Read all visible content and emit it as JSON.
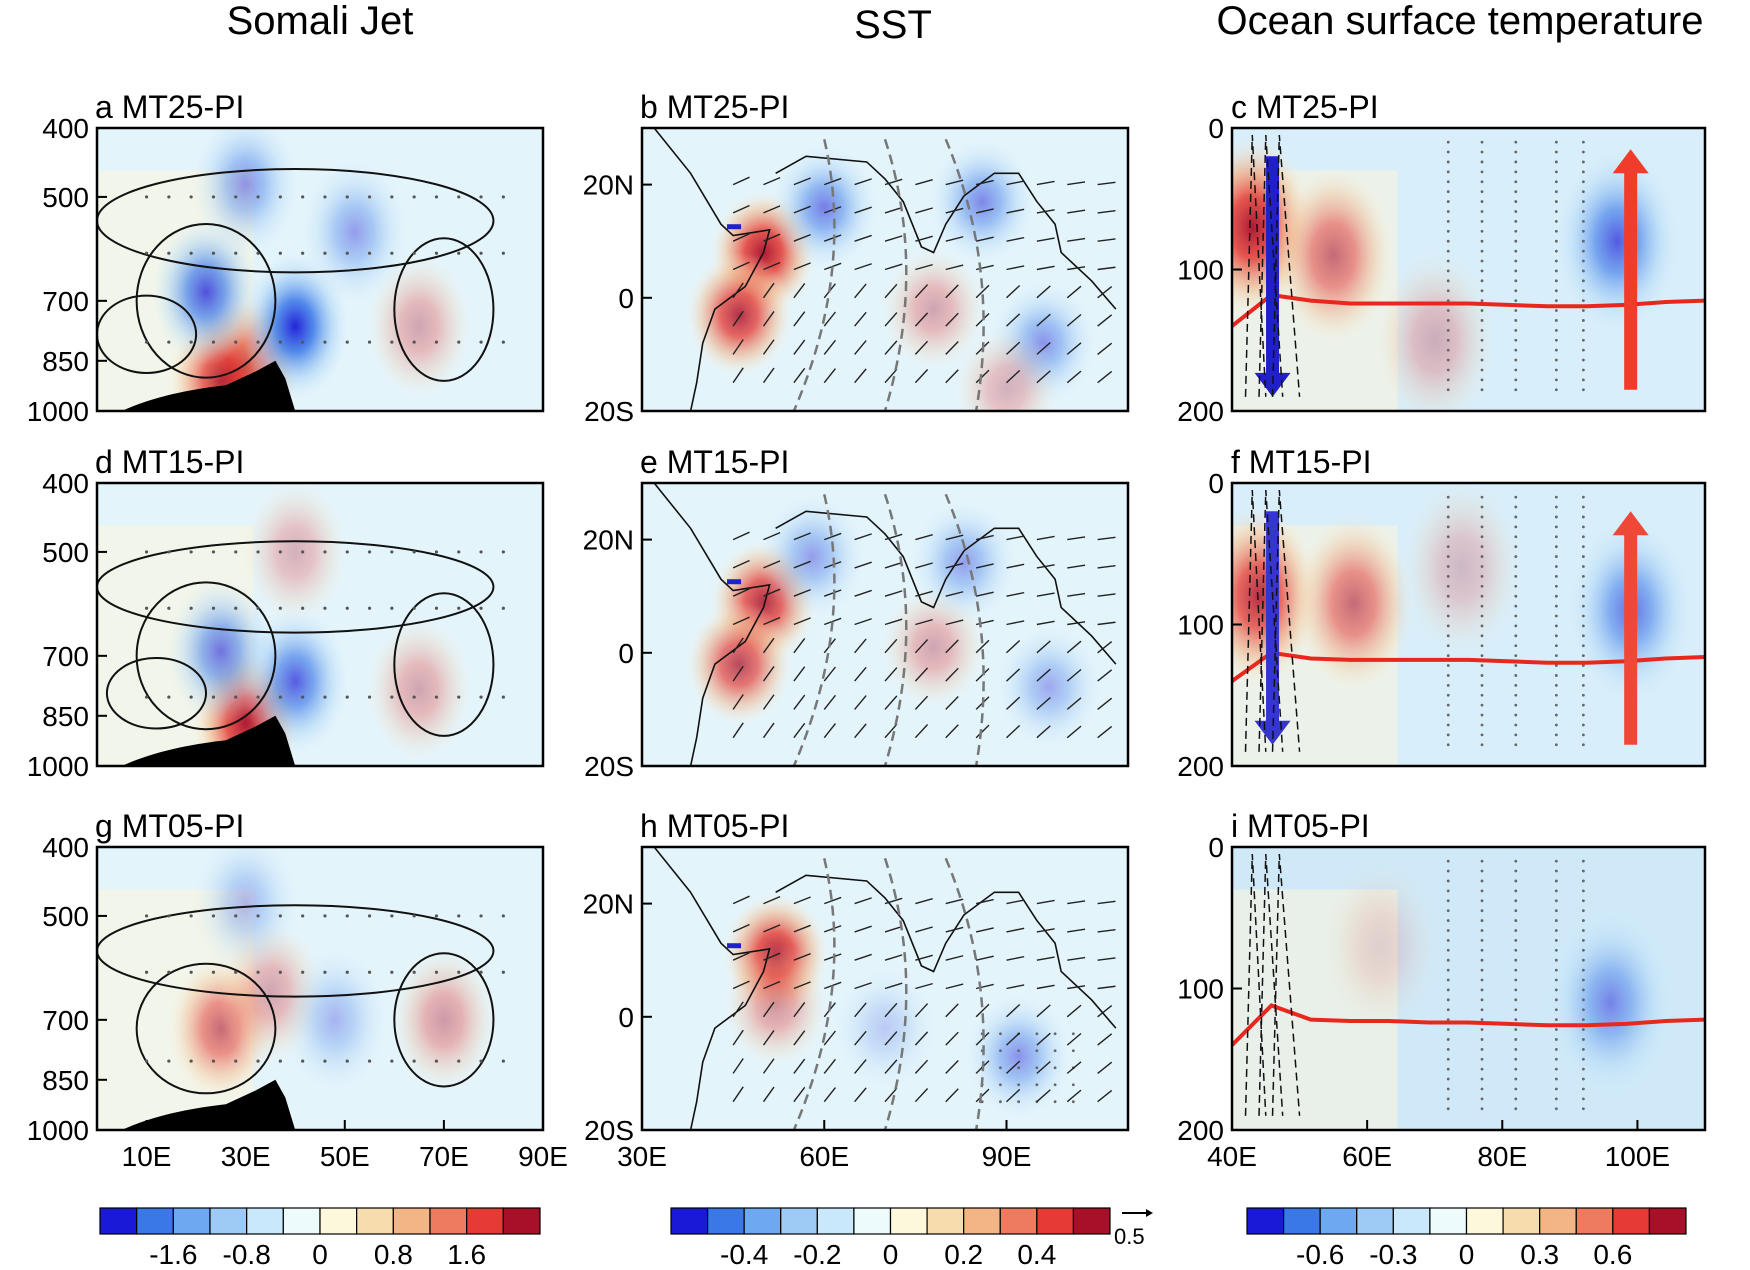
{
  "columns": [
    "Somali Jet",
    "SST",
    "Ocean surface temperature"
  ],
  "chart_data": [
    {
      "type": "heatmap",
      "label": "a MT25-PI",
      "column": "Somali Jet",
      "x_ticks": [
        "10E",
        "30E",
        "50E",
        "70E",
        "90E"
      ],
      "y_ticks": [
        "400",
        "500",
        "700",
        "850",
        "1000"
      ],
      "x_range": [
        0,
        90
      ],
      "y_range": [
        1000,
        400
      ],
      "features": [
        {
          "kind": "warm",
          "x": 30,
          "y": 870,
          "a": 0.95
        },
        {
          "kind": "warm",
          "x": 25,
          "y": 910,
          "a": 0.8
        },
        {
          "kind": "cold",
          "x": 40,
          "y": 760,
          "a": 0.95
        },
        {
          "kind": "cold",
          "x": 22,
          "y": 680,
          "a": 0.75
        },
        {
          "kind": "cold",
          "x": 30,
          "y": 480,
          "a": 0.45
        },
        {
          "kind": "warm",
          "x": 65,
          "y": 760,
          "a": 0.35
        },
        {
          "kind": "cold",
          "x": 52,
          "y": 560,
          "a": 0.4
        }
      ],
      "contours": [
        {
          "x": 10,
          "y": 780,
          "rx": 10,
          "ry": 130
        },
        {
          "x": 22,
          "y": 700,
          "rx": 14,
          "ry": 230
        },
        {
          "x": 70,
          "y": 720,
          "rx": 10,
          "ry": 220
        },
        {
          "x": 40,
          "y": 540,
          "rx": 40,
          "ry": 120
        }
      ],
      "topography": true
    },
    {
      "type": "heatmap",
      "label": "d MT15-PI",
      "column": "Somali Jet",
      "x_ticks": [
        "10E",
        "30E",
        "50E",
        "70E",
        "90E"
      ],
      "y_ticks": [
        "400",
        "500",
        "700",
        "850",
        "1000"
      ],
      "x_range": [
        0,
        90
      ],
      "y_range": [
        1000,
        400
      ],
      "features": [
        {
          "kind": "warm",
          "x": 30,
          "y": 870,
          "a": 0.95
        },
        {
          "kind": "cold",
          "x": 40,
          "y": 760,
          "a": 0.7
        },
        {
          "kind": "cold",
          "x": 25,
          "y": 690,
          "a": 0.6
        },
        {
          "kind": "warm",
          "x": 65,
          "y": 780,
          "a": 0.35
        },
        {
          "kind": "warm",
          "x": 40,
          "y": 500,
          "a": 0.3
        }
      ],
      "contours": [
        {
          "x": 12,
          "y": 790,
          "rx": 10,
          "ry": 120
        },
        {
          "x": 22,
          "y": 700,
          "rx": 14,
          "ry": 220
        },
        {
          "x": 70,
          "y": 720,
          "rx": 10,
          "ry": 220
        },
        {
          "x": 40,
          "y": 560,
          "rx": 40,
          "ry": 110
        }
      ],
      "topography": true
    },
    {
      "type": "heatmap",
      "label": "g MT05-PI",
      "column": "Somali Jet",
      "x_ticks": [
        "10E",
        "30E",
        "50E",
        "70E",
        "90E"
      ],
      "y_ticks": [
        "400",
        "500",
        "700",
        "850",
        "1000"
      ],
      "x_range": [
        0,
        90
      ],
      "y_range": [
        1000,
        400
      ],
      "features": [
        {
          "kind": "warm",
          "x": 25,
          "y": 720,
          "a": 0.6
        },
        {
          "kind": "warm",
          "x": 35,
          "y": 640,
          "a": 0.35
        },
        {
          "kind": "cold",
          "x": 48,
          "y": 700,
          "a": 0.3
        },
        {
          "kind": "warm",
          "x": 70,
          "y": 700,
          "a": 0.4
        },
        {
          "kind": "cold",
          "x": 30,
          "y": 480,
          "a": 0.3
        }
      ],
      "contours": [
        {
          "x": 22,
          "y": 720,
          "rx": 14,
          "ry": 200
        },
        {
          "x": 70,
          "y": 700,
          "rx": 10,
          "ry": 200
        },
        {
          "x": 40,
          "y": 560,
          "rx": 40,
          "ry": 110
        }
      ],
      "topography": true
    },
    {
      "type": "heatmap",
      "label": "b MT25-PI",
      "column": "SST",
      "x_ticks": [
        "30E",
        "60E",
        "90E"
      ],
      "y_ticks": [
        "20N",
        "0",
        "20S"
      ],
      "x_range": [
        30,
        110
      ],
      "y_range": [
        -20,
        30
      ],
      "features": [
        {
          "kind": "warm",
          "x": 50,
          "y": 8,
          "a": 0.95
        },
        {
          "kind": "warm",
          "x": 46,
          "y": -3,
          "a": 0.85
        },
        {
          "kind": "cold",
          "x": 60,
          "y": 16,
          "a": 0.55
        },
        {
          "kind": "warm",
          "x": 78,
          "y": -2,
          "a": 0.35
        },
        {
          "kind": "cold",
          "x": 86,
          "y": 17,
          "a": 0.5
        },
        {
          "kind": "cold",
          "x": 96,
          "y": -8,
          "a": 0.45
        },
        {
          "kind": "warm",
          "x": 90,
          "y": -16,
          "a": 0.3
        }
      ],
      "contours": []
    },
    {
      "type": "heatmap",
      "label": "e MT15-PI",
      "column": "SST",
      "x_ticks": [
        "30E",
        "60E",
        "90E"
      ],
      "y_ticks": [
        "20N",
        "0",
        "20S"
      ],
      "x_range": [
        30,
        110
      ],
      "y_range": [
        -20,
        30
      ],
      "features": [
        {
          "kind": "warm",
          "x": 50,
          "y": 9,
          "a": 0.85
        },
        {
          "kind": "warm",
          "x": 46,
          "y": -2,
          "a": 0.75
        },
        {
          "kind": "cold",
          "x": 58,
          "y": 17,
          "a": 0.4
        },
        {
          "kind": "warm",
          "x": 78,
          "y": 1,
          "a": 0.35
        },
        {
          "kind": "cold",
          "x": 83,
          "y": 16,
          "a": 0.4
        },
        {
          "kind": "cold",
          "x": 97,
          "y": -6,
          "a": 0.35
        }
      ],
      "contours": []
    },
    {
      "type": "heatmap",
      "label": "h MT05-PI",
      "column": "SST",
      "x_ticks": [
        "30E",
        "60E",
        "90E"
      ],
      "y_ticks": [
        "20N",
        "0",
        "20S"
      ],
      "x_range": [
        30,
        110
      ],
      "y_range": [
        -20,
        30
      ],
      "features": [
        {
          "kind": "warm",
          "x": 52,
          "y": 11,
          "a": 0.9
        },
        {
          "kind": "warm",
          "x": 52,
          "y": 2,
          "a": 0.4
        },
        {
          "kind": "cold",
          "x": 92,
          "y": -7,
          "a": 0.45
        },
        {
          "kind": "cold",
          "x": 70,
          "y": -2,
          "a": 0.2
        }
      ],
      "contours": []
    },
    {
      "type": "heatmap",
      "label": "c MT25-PI",
      "column": "Ocean surface temperature",
      "x_ticks": [
        "40E",
        "60E",
        "80E",
        "100E"
      ],
      "y_ticks": [
        "0",
        "100",
        "200"
      ],
      "x_range": [
        40,
        110
      ],
      "y_range": [
        0,
        200
      ],
      "features": [
        {
          "kind": "warm",
          "x": 43,
          "y": 70,
          "a": 0.95
        },
        {
          "kind": "warm",
          "x": 55,
          "y": 90,
          "a": 0.6
        },
        {
          "kind": "cold",
          "x": 97,
          "y": 80,
          "a": 0.7
        },
        {
          "kind": "warm",
          "x": 70,
          "y": 150,
          "a": 0.3
        }
      ],
      "contours": [],
      "mixed_layer": [
        140,
        118,
        122,
        124,
        124,
        124,
        124,
        125,
        126,
        126,
        125,
        123,
        122
      ],
      "arrows": [
        {
          "color": "#2020c8",
          "x": 46,
          "y0": 20,
          "y1": 190
        },
        {
          "color": "#f03c2a",
          "x": 99,
          "y0": 185,
          "y1": 15
        }
      ]
    },
    {
      "type": "heatmap",
      "label": "f MT15-PI",
      "column": "Ocean surface temperature",
      "x_ticks": [
        "40E",
        "60E",
        "80E",
        "100E"
      ],
      "y_ticks": [
        "0",
        "100",
        "200"
      ],
      "x_range": [
        40,
        110
      ],
      "y_range": [
        0,
        200
      ],
      "features": [
        {
          "kind": "warm",
          "x": 44,
          "y": 80,
          "a": 0.85
        },
        {
          "kind": "warm",
          "x": 58,
          "y": 85,
          "a": 0.6
        },
        {
          "kind": "cold",
          "x": 99,
          "y": 90,
          "a": 0.6
        },
        {
          "kind": "warm",
          "x": 74,
          "y": 60,
          "a": 0.25
        }
      ],
      "contours": [],
      "mixed_layer": [
        140,
        120,
        124,
        125,
        125,
        125,
        125,
        126,
        127,
        127,
        126,
        124,
        123
      ],
      "arrows": [
        {
          "color": "#3535d0",
          "x": 46,
          "y0": 20,
          "y1": 185
        },
        {
          "color": "#f04838",
          "x": 99,
          "y0": 185,
          "y1": 20
        }
      ]
    },
    {
      "type": "heatmap",
      "label": "i MT05-PI",
      "column": "Ocean surface temperature",
      "x_ticks": [
        "40E",
        "60E",
        "80E",
        "100E"
      ],
      "y_ticks": [
        "0",
        "100",
        "200"
      ],
      "x_range": [
        40,
        110
      ],
      "y_range": [
        0,
        200
      ],
      "features": [
        {
          "kind": "cold",
          "x": 96,
          "y": 110,
          "a": 0.5
        },
        {
          "kind": "warm",
          "x": 62,
          "y": 70,
          "a": 0.15
        }
      ],
      "contours": [],
      "mixed_layer": [
        140,
        112,
        122,
        123,
        123,
        124,
        124,
        125,
        126,
        126,
        125,
        123,
        122
      ],
      "arrows": []
    }
  ],
  "colorbars": [
    {
      "labels": [
        "-1.6",
        "-0.8",
        "0",
        "0.8",
        "1.6"
      ],
      "extra": ""
    },
    {
      "labels": [
        "-0.4",
        "-0.2",
        "0",
        "0.2",
        "0.4"
      ],
      "extra": "0.5"
    },
    {
      "labels": [
        "-0.6",
        "-0.3",
        "0",
        "0.3",
        "0.6"
      ],
      "extra": ""
    }
  ],
  "palette": [
    "#1a1ad6",
    "#3a78e8",
    "#6ea8f0",
    "#9dcbf5",
    "#c9e8fb",
    "#eefbfc",
    "#fdf7db",
    "#f7dcae",
    "#f3b585",
    "#ee7b60",
    "#e43c35",
    "#a8102a"
  ]
}
